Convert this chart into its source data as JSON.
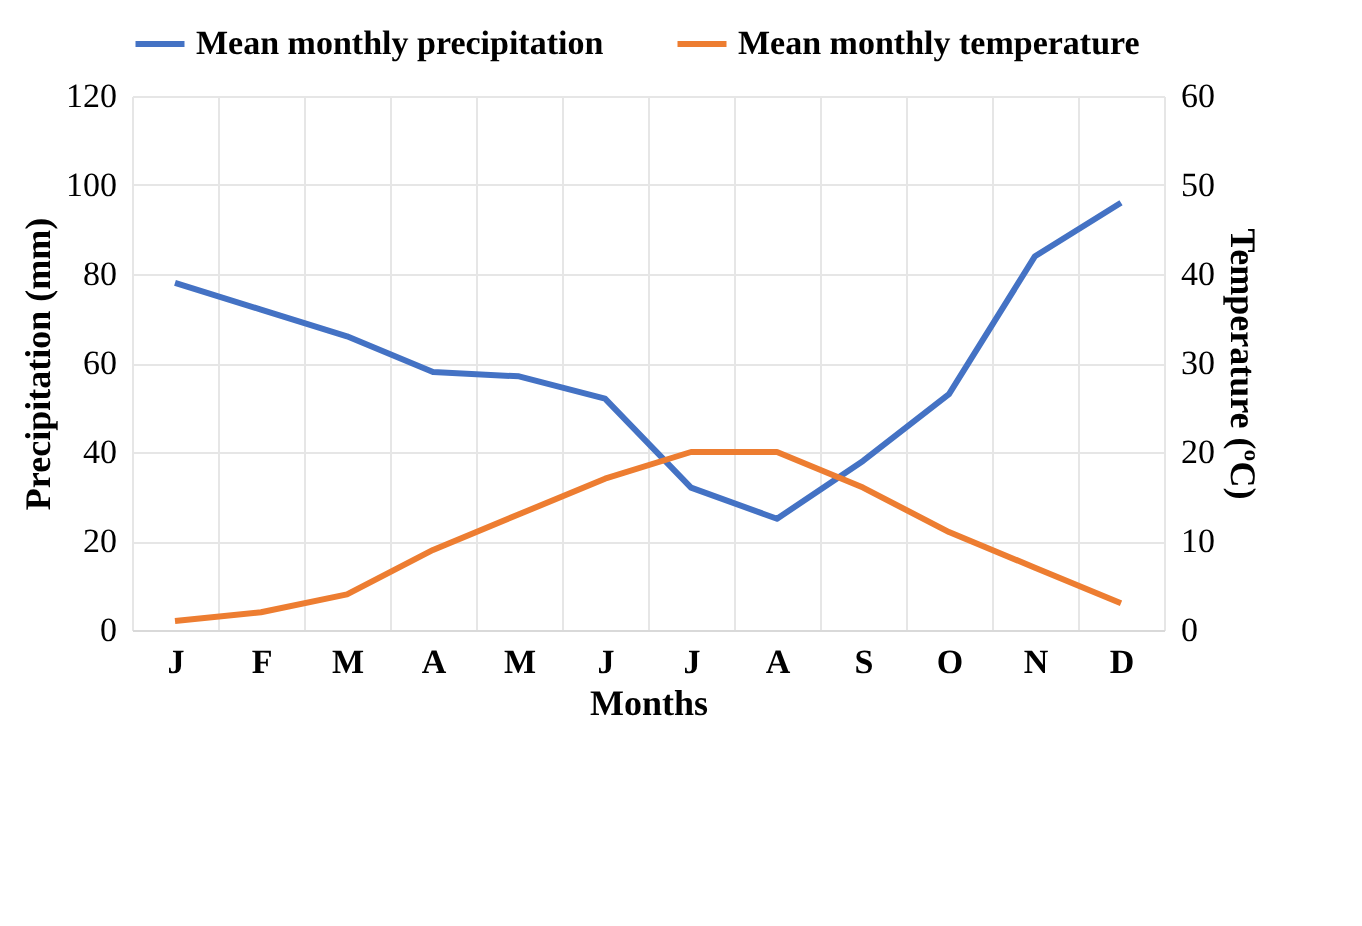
{
  "chart_data": {
    "type": "line",
    "xlabel": "Months",
    "ylabel": "Precipitation (mm)",
    "y2label": "Temperature (ºC)",
    "categories": [
      "J",
      "F",
      "M",
      "A",
      "M",
      "J",
      "J",
      "A",
      "S",
      "O",
      "N",
      "D"
    ],
    "series": [
      {
        "name": "Mean monthly precipitation",
        "color": "#4472c4",
        "values": [
          78,
          72,
          66,
          58,
          57,
          52,
          32,
          25,
          38,
          53,
          84,
          96
        ]
      },
      {
        "name": "Mean monthly temperature",
        "color": "#ed7d31",
        "axis": "y2",
        "values": [
          1,
          2,
          4,
          9,
          13,
          17,
          20,
          20,
          16,
          11,
          7,
          3
        ]
      }
    ],
    "ylim": [
      0,
      120
    ],
    "yticks": [
      0,
      20,
      40,
      60,
      80,
      100,
      120
    ],
    "y2lim": [
      0,
      60
    ],
    "y2ticks": [
      0,
      10,
      20,
      30,
      40,
      50,
      60
    ],
    "grid": true,
    "legend": "top",
    "line_style": "solid",
    "marker": "none"
  }
}
